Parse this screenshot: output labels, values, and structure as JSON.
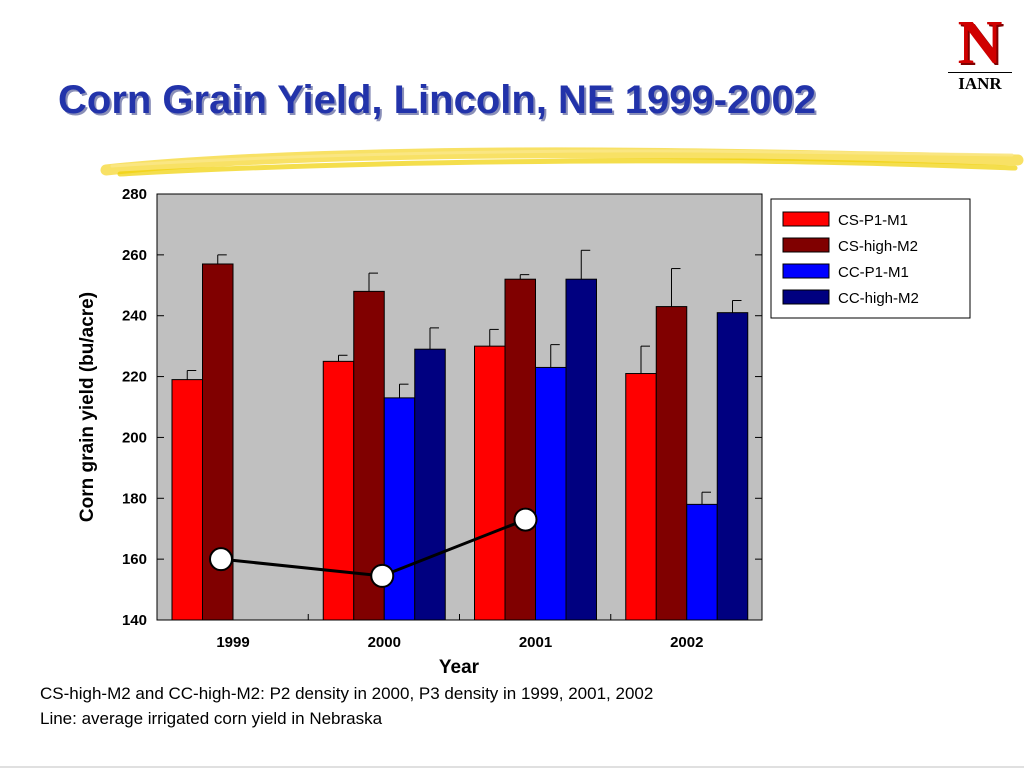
{
  "title": "Corn Grain Yield, Lincoln, NE 1999-2002",
  "logo": {
    "mark": "N",
    "text": "IANR"
  },
  "notes": [
    "CS-high-M2 and CC-high-M2: P2 density in 2000, P3 density in 1999, 2001, 2002",
    "Line: average irrigated corn yield in Nebraska"
  ],
  "colors": {
    "title": "#2233aa",
    "plot_bg": "#c0c0c0",
    "highlight": "#f0d000"
  },
  "chart_data": {
    "type": "bar",
    "xlabel": "Year",
    "ylabel": "Corn grain yield (bu/acre)",
    "ylim": [
      140,
      280
    ],
    "yticks": [
      140,
      160,
      180,
      200,
      220,
      240,
      260,
      280
    ],
    "categories": [
      "1999",
      "2000",
      "2001",
      "2002"
    ],
    "legend_position": "top-right",
    "series": [
      {
        "name": "CS-P1-M1",
        "color": "#ff0000",
        "values": [
          219,
          225,
          230,
          221
        ],
        "errors": [
          3,
          2,
          5.5,
          9
        ]
      },
      {
        "name": "CS-high-M2",
        "color": "#800000",
        "values": [
          257,
          248,
          252,
          243
        ],
        "errors": [
          3,
          6,
          1.5,
          12.5
        ]
      },
      {
        "name": "CC-P1-M1",
        "color": "#0000ff",
        "values": [
          null,
          213,
          223,
          178
        ],
        "errors": [
          null,
          4.5,
          7.5,
          4
        ]
      },
      {
        "name": "CC-high-M2",
        "color": "#000080",
        "values": [
          null,
          229,
          252,
          241
        ],
        "errors": [
          null,
          7,
          9.5,
          4
        ]
      }
    ],
    "line": {
      "x": [
        "1999",
        "2000",
        "2001"
      ],
      "values": [
        160,
        154.5,
        173
      ]
    }
  }
}
